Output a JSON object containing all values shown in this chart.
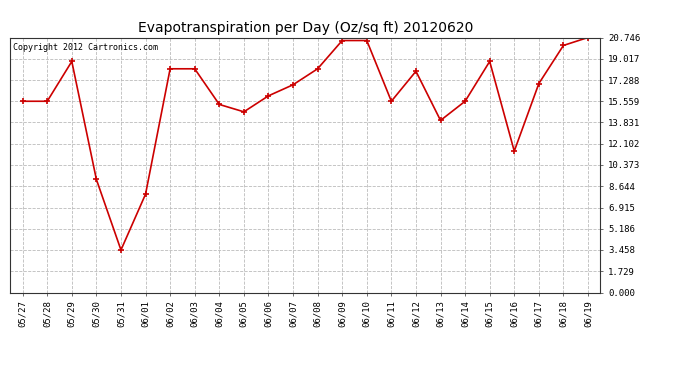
{
  "title": "Evapotranspiration per Day (Oz/sq ft) 20120620",
  "copyright": "Copyright 2012 Cartronics.com",
  "labels": [
    "05/27",
    "05/28",
    "05/29",
    "05/30",
    "05/31",
    "06/01",
    "06/02",
    "06/03",
    "06/04",
    "06/05",
    "06/06",
    "06/07",
    "06/08",
    "06/09",
    "06/10",
    "06/11",
    "06/12",
    "06/13",
    "06/14",
    "06/15",
    "06/16",
    "06/17",
    "06/18",
    "06/19"
  ],
  "values": [
    15.559,
    15.559,
    18.8,
    9.2,
    3.458,
    8.0,
    18.2,
    18.2,
    15.3,
    14.7,
    16.0,
    16.9,
    18.2,
    20.5,
    20.5,
    15.559,
    18.0,
    14.0,
    15.559,
    18.8,
    11.5,
    17.0,
    20.1,
    20.746
  ],
  "yticks": [
    0.0,
    1.729,
    3.458,
    5.186,
    6.915,
    8.644,
    10.373,
    12.102,
    13.831,
    15.559,
    17.288,
    19.017,
    20.746
  ],
  "line_color": "#cc0000",
  "marker": "+",
  "background_color": "#ffffff",
  "plot_bg_color": "#ffffff",
  "grid_color": "#bbbbbb",
  "title_fontsize": 10,
  "copyright_fontsize": 6,
  "tick_fontsize": 6.5,
  "ylim": [
    0.0,
    20.746
  ],
  "xlim": [
    -0.5,
    23.5
  ]
}
